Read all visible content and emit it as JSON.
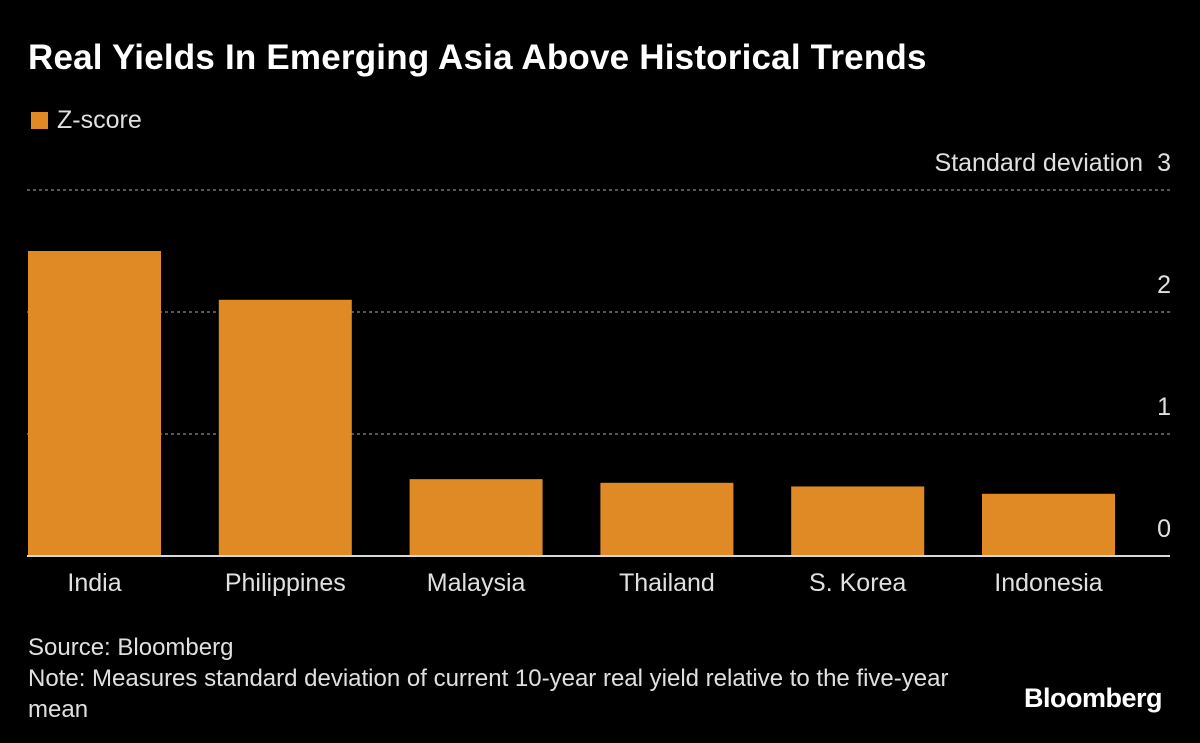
{
  "title": "Real Yields In Emerging Asia Above Historical Trends",
  "legend": {
    "label": "Z-score",
    "color": "#E08A25"
  },
  "chart_data": {
    "type": "bar",
    "categories": [
      "India",
      "Philippines",
      "Malaysia",
      "Thailand",
      "S. Korea",
      "Indonesia"
    ],
    "series": [
      {
        "name": "Z-score",
        "values": [
          2.5,
          2.1,
          0.63,
          0.6,
          0.57,
          0.51
        ],
        "color": "#E08A25"
      }
    ],
    "ylabel": "Standard deviation",
    "yticks": [
      0,
      1,
      2,
      3
    ],
    "ylim": [
      0,
      3
    ],
    "grid": true,
    "legend_position": "top-left"
  },
  "footer": {
    "source": "Source: Bloomberg",
    "note": "Note: Measures standard deviation of current 10-year real yield relative to the five-year mean"
  },
  "brand": "Bloomberg"
}
